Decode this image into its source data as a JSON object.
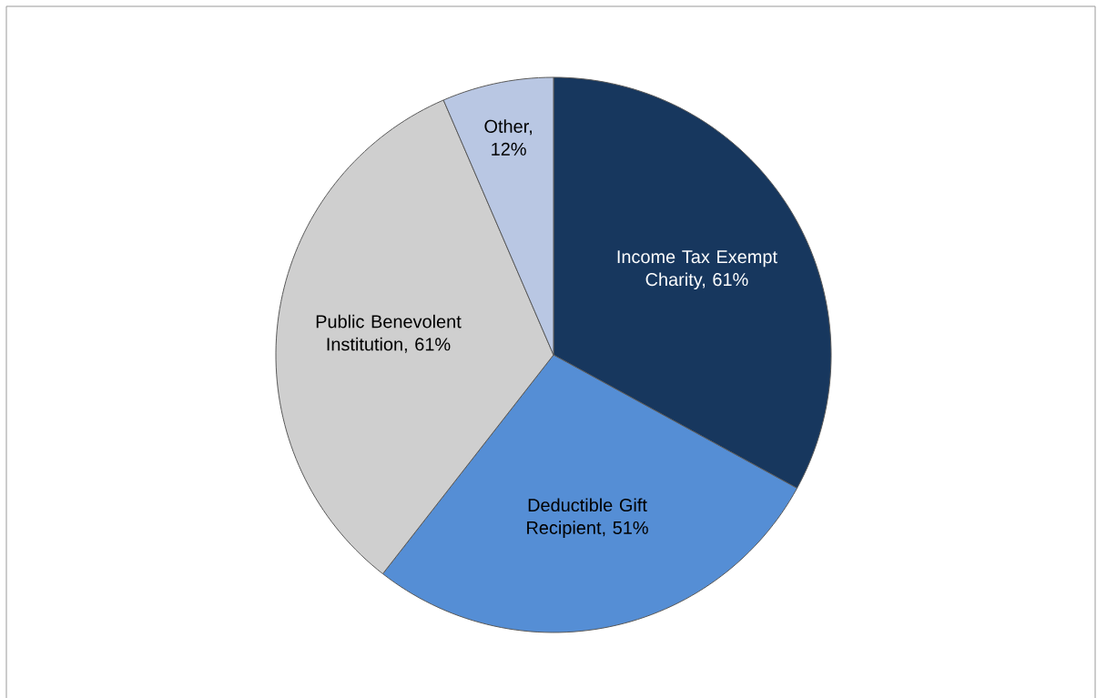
{
  "chart_data": {
    "type": "pie",
    "categories": [
      "Income Tax Exempt Charity, 61%",
      "Deductible Gift Recipient, 51%",
      "Public Benevolent Institution, 61%",
      "Other, 12%"
    ],
    "values": [
      61,
      51,
      61,
      12
    ],
    "colors": [
      "#17375e",
      "#558ed5",
      "#cfcfcf",
      "#b9c7e3"
    ]
  }
}
